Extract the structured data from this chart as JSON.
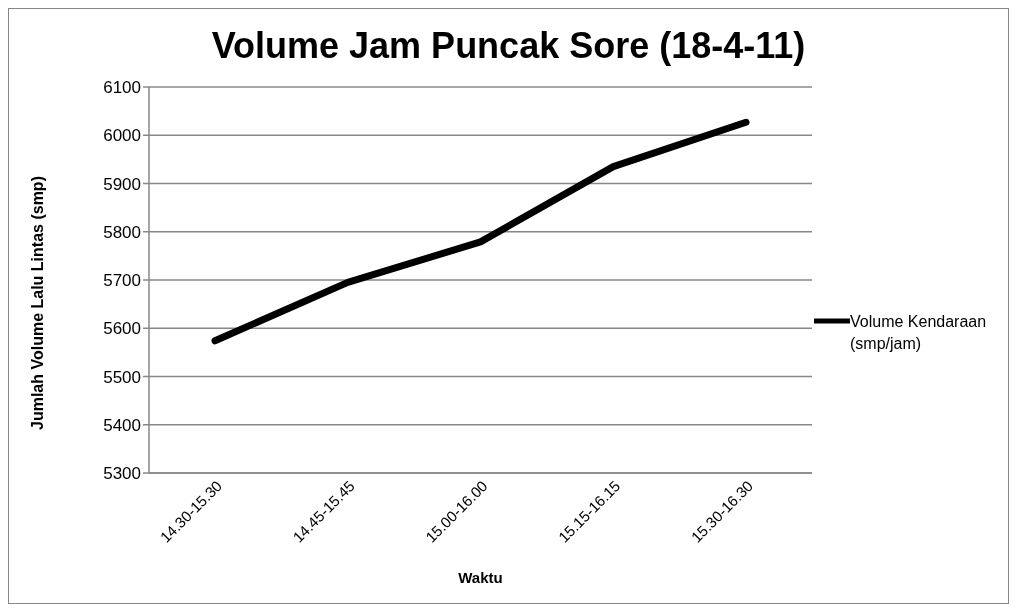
{
  "chart_data": {
    "type": "line",
    "title": "Volume Jam Puncak Sore (18-4-11)",
    "xlabel": "Waktu",
    "ylabel": "Jumlah Volume Lalu Lintas (smp)",
    "categories": [
      "14.30-15.30",
      "14.45-15.45",
      "15.00-16.00",
      "15.15-16.15",
      "15.30-16.30"
    ],
    "series": [
      {
        "name": "Volume Kendaraan (smp/jam)",
        "color": "#000000",
        "values": [
          5574,
          5695,
          5779,
          5935,
          6027
        ]
      }
    ],
    "ylim": [
      5300,
      6100
    ],
    "yticks": [
      5300,
      5400,
      5500,
      5600,
      5700,
      5800,
      5900,
      6000,
      6100
    ],
    "grid": "y",
    "legend": "right",
    "marker": "none",
    "line_style": "solid"
  }
}
